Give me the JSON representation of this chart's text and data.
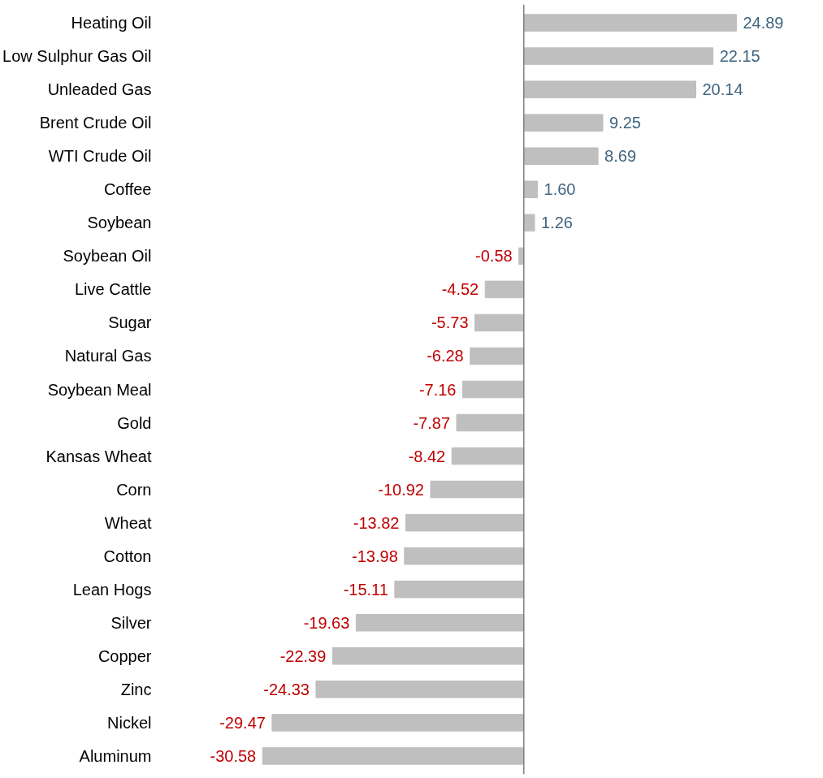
{
  "chart_data": {
    "type": "bar",
    "orientation": "horizontal",
    "categories": [
      "Heating Oil",
      "Low Sulphur Gas Oil",
      "Unleaded Gas",
      "Brent Crude Oil",
      "WTI Crude Oil",
      "Coffee",
      "Soybean",
      "Soybean Oil",
      "Live Cattle",
      "Sugar",
      "Natural Gas",
      "Soybean Meal",
      "Gold",
      "Kansas Wheat",
      "Corn",
      "Wheat",
      "Cotton",
      "Lean Hogs",
      "Silver",
      "Copper",
      "Zinc",
      "Nickel",
      "Aluminum"
    ],
    "values": [
      24.89,
      22.15,
      20.14,
      9.25,
      8.69,
      1.6,
      1.26,
      -0.58,
      -4.52,
      -5.73,
      -6.28,
      -7.16,
      -7.87,
      -8.42,
      -10.92,
      -13.82,
      -13.98,
      -15.11,
      -19.63,
      -22.39,
      -24.33,
      -29.47,
      -30.58
    ],
    "value_labels": [
      "24.89",
      "22.15",
      "20.14",
      "9.25",
      "8.69",
      "1.60",
      "1.26",
      "-0.58",
      "-4.52",
      "-5.73",
      "-6.28",
      "-7.16",
      "-7.87",
      "-8.42",
      "-10.92",
      "-13.82",
      "-13.98",
      "-15.11",
      "-19.63",
      "-22.39",
      "-24.33",
      "-29.47",
      "-30.58"
    ],
    "color": "#bfbfbf",
    "grid": false,
    "tick_labels": "y"
  }
}
